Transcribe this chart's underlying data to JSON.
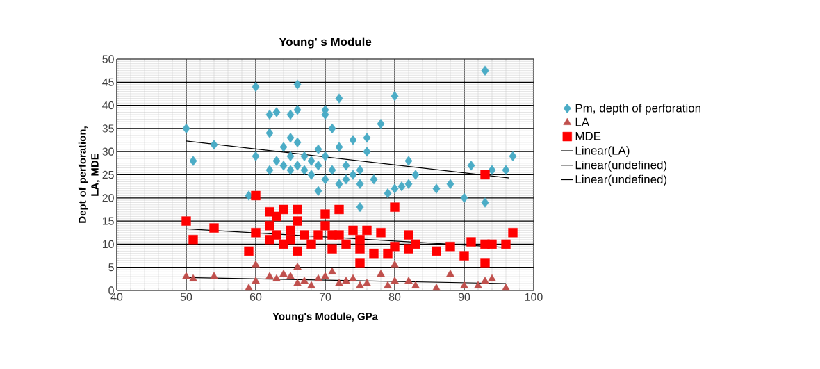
{
  "chart_data": {
    "type": "scatter",
    "title": "Young' s Module",
    "xlabel": "Young's Module, GPa",
    "ylabel": "Dept of  perforation, LA, MDE",
    "xlim": [
      40,
      100
    ],
    "xticks": [
      40,
      50,
      60,
      70,
      80,
      90,
      100
    ],
    "ylim": [
      0,
      50
    ],
    "yticks": [
      0,
      5,
      10,
      15,
      20,
      25,
      30,
      35,
      40,
      45,
      50
    ],
    "grid": true,
    "legend": "right",
    "series": [
      {
        "name": "Pm, depth of perforation",
        "marker": "diamond",
        "color": "#4bacc6",
        "x": [
          50,
          51,
          54,
          59,
          60,
          60,
          62,
          62,
          62,
          63,
          63,
          64,
          64,
          65,
          65,
          65,
          65,
          66,
          66,
          66,
          66,
          67,
          67,
          68,
          68,
          69,
          69,
          69,
          70,
          70,
          70,
          70,
          71,
          71,
          72,
          72,
          72,
          73,
          73,
          74,
          74,
          75,
          75,
          75,
          76,
          76,
          77,
          78,
          79,
          80,
          80,
          81,
          82,
          82,
          83,
          86,
          88,
          90,
          91,
          93,
          93,
          94,
          96,
          97
        ],
        "values": [
          35,
          28,
          31.5,
          20.5,
          44,
          29,
          38,
          34,
          26,
          38.5,
          28,
          31,
          27,
          38,
          33,
          29,
          26,
          44.5,
          39,
          32,
          27,
          29,
          26,
          25,
          28,
          30.5,
          21.5,
          27,
          39,
          38,
          29,
          24,
          35,
          26,
          41.5,
          31,
          23,
          27,
          24,
          32.5,
          25,
          18,
          23,
          26,
          33,
          30,
          24,
          36,
          21,
          42,
          22,
          22.5,
          23,
          28,
          25,
          22,
          23,
          20,
          27,
          47.5,
          19,
          26,
          26,
          29
        ]
      },
      {
        "name": "LA",
        "marker": "triangle",
        "color": "#c0504d",
        "x": [
          50,
          51,
          54,
          59,
          60,
          60,
          62,
          63,
          64,
          65,
          66,
          66,
          67,
          68,
          69,
          70,
          71,
          72,
          73,
          74,
          75,
          76,
          78,
          79,
          80,
          80,
          82,
          83,
          86,
          88,
          90,
          92,
          93,
          94,
          96
        ],
        "values": [
          3,
          2.5,
          3,
          0.5,
          5.5,
          2,
          3,
          2.5,
          3.5,
          3,
          5,
          1.5,
          2,
          1,
          2.5,
          3,
          4,
          1.5,
          2,
          2.5,
          1,
          1.5,
          3.5,
          1,
          2,
          5.5,
          2,
          1,
          0.5,
          3.5,
          1,
          1,
          2,
          2.5,
          0.5
        ]
      },
      {
        "name": "MDE",
        "marker": "square",
        "color": "#ff0000",
        "x": [
          50,
          51,
          54,
          59,
          60,
          60,
          62,
          62,
          62,
          63,
          63,
          64,
          64,
          65,
          65,
          66,
          66,
          66,
          67,
          68,
          69,
          70,
          70,
          71,
          71,
          72,
          72,
          73,
          74,
          75,
          75,
          75,
          76,
          77,
          78,
          79,
          80,
          80,
          82,
          82,
          83,
          86,
          88,
          90,
          91,
          93,
          93,
          93,
          94,
          96,
          97
        ],
        "values": [
          15,
          11,
          13.5,
          8.5,
          20.5,
          12.5,
          17,
          14,
          11,
          16,
          12,
          17.5,
          10,
          13,
          11,
          17.5,
          15,
          8.5,
          12,
          10,
          12,
          16.5,
          14,
          9,
          12,
          17.5,
          12,
          10,
          13,
          6,
          9,
          11,
          13,
          8,
          12.5,
          8,
          18,
          9.5,
          12,
          9,
          10,
          8.5,
          9.5,
          7.5,
          10.5,
          25,
          6,
          10,
          10,
          10,
          12.5
        ]
      },
      {
        "name": "Linear(LA)",
        "type": "line",
        "marker": "none",
        "color": "#000000",
        "x": [
          50,
          96
        ],
        "values": [
          2.8,
          1.5
        ]
      },
      {
        "name": "Linear(undefined)",
        "type": "line",
        "marker": "none",
        "color": "#000000",
        "x": [
          50,
          96.5
        ],
        "values": [
          32.3,
          24.3
        ]
      },
      {
        "name": "Linear(undefined)",
        "type": "line",
        "marker": "none",
        "color": "#000000",
        "x": [
          50,
          96
        ],
        "values": [
          13.3,
          9.3
        ]
      }
    ]
  }
}
